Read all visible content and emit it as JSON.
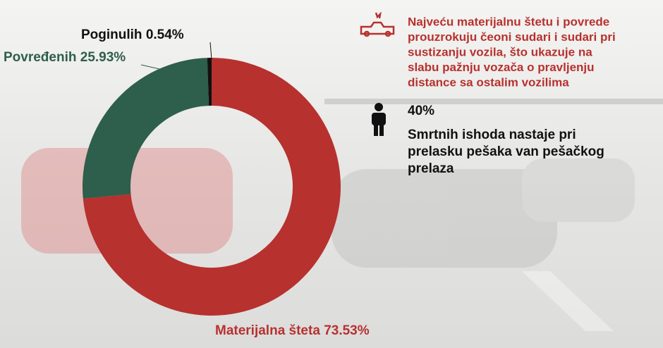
{
  "chart_data": {
    "type": "donut",
    "categories": [
      "Materijalna šteta",
      "Povređenih",
      "Poginulih"
    ],
    "values": [
      73.53,
      25.93,
      0.54
    ],
    "value_labels": [
      "73.53%",
      "25.93%",
      "0.54%"
    ],
    "colors": [
      "#b7312e",
      "#2e5e4c",
      "#111111"
    ]
  },
  "notes": {
    "crash_text": [
      "Najveću materijalnu štetu i povrede",
      "prouzrokuju čeoni sudari i sudari pri",
      "sustizanju vozila, što ukazuje na",
      "slabu pažnju vozača o pravljenju",
      "distance sa ostalim vozilima"
    ],
    "stat": "40%",
    "stat_text": [
      "Smrtnih ishoda nastaje pri",
      "prelasku pešaka van pešačkog",
      "prelaza"
    ]
  }
}
